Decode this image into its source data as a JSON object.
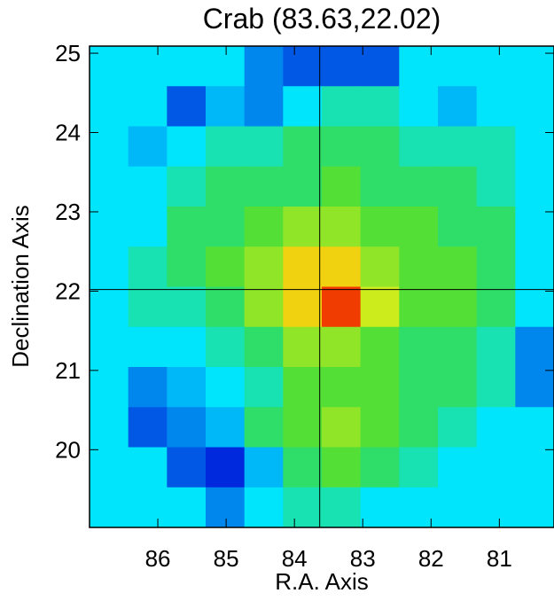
{
  "chart_data": {
    "type": "heatmap",
    "title": "Crab (83.63,22.02)",
    "x_label": "R.A. Axis",
    "y_label": "Declination Axis",
    "xlim": [
      87.0,
      80.2
    ],
    "ylim": [
      19.02,
      25.09
    ],
    "xticks": [
      86,
      85,
      84,
      83,
      82,
      81
    ],
    "yticks": [
      20,
      21,
      22,
      23,
      24,
      25
    ],
    "crosshair": {
      "x": 83.63,
      "y": 22.02
    },
    "z": [
      [
        0,
        0,
        0,
        0,
        -1,
        -1.5,
        -1.5,
        -1.5,
        0,
        0,
        0,
        0
      ],
      [
        0,
        0,
        -1.5,
        -0.5,
        -1,
        0,
        0.5,
        0.5,
        0,
        -0.5,
        0,
        0
      ],
      [
        0,
        -0.5,
        0,
        0.5,
        0.5,
        1,
        1,
        1,
        0.5,
        0.5,
        0.5,
        0
      ],
      [
        0,
        0,
        0.5,
        1,
        1,
        1,
        1.5,
        1,
        1,
        1,
        0.5,
        0
      ],
      [
        0,
        0,
        1,
        1,
        1.5,
        2,
        2,
        1.5,
        1.5,
        1,
        1,
        0
      ],
      [
        0,
        0.5,
        1,
        1.5,
        2,
        3,
        3,
        2,
        1.5,
        1.5,
        1,
        0
      ],
      [
        0,
        0.5,
        0.5,
        1,
        2,
        3,
        4,
        2.5,
        1.5,
        1.5,
        1,
        0
      ],
      [
        0,
        0,
        0,
        0.5,
        1,
        2,
        2,
        1.5,
        1,
        1,
        0.5,
        -1
      ],
      [
        0,
        -1,
        -0.5,
        0,
        0.5,
        1.5,
        1.5,
        1.5,
        1,
        1,
        0.5,
        -1
      ],
      [
        0,
        -1.5,
        -1,
        -0.5,
        1,
        1.5,
        2,
        1.5,
        1,
        0.5,
        0,
        0
      ],
      [
        0,
        0,
        -1.5,
        -2,
        -0.5,
        1,
        1.5,
        1,
        0.5,
        0,
        0,
        0
      ],
      [
        0,
        0,
        0,
        -1,
        0,
        0.5,
        0.5,
        0,
        0,
        0,
        0,
        0
      ]
    ]
  }
}
